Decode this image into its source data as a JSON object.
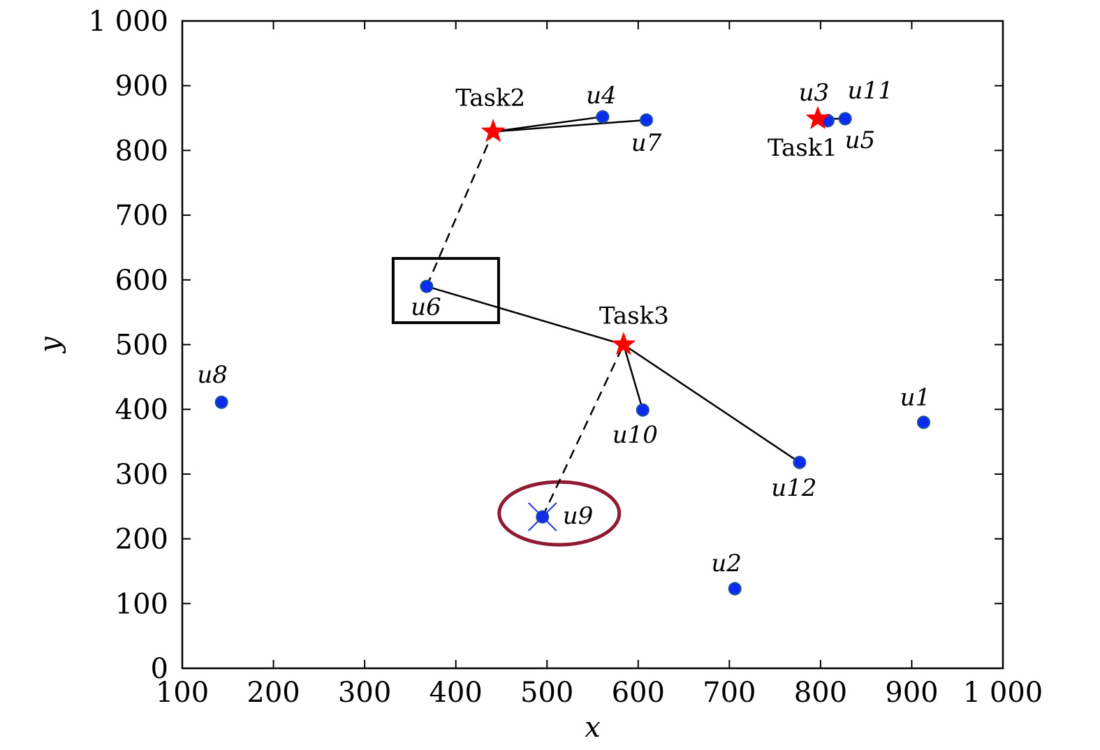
{
  "chart_data": {
    "type": "scatter",
    "xlabel": "x",
    "ylabel": "y",
    "xlim": [
      100,
      1000
    ],
    "ylim": [
      0,
      1000
    ],
    "xticks": [
      100,
      200,
      300,
      400,
      500,
      600,
      700,
      800,
      900,
      1000
    ],
    "xtick_labels": [
      "100",
      "200",
      "300",
      "400",
      "500",
      "600",
      "700",
      "800",
      "900",
      "1 000"
    ],
    "yticks": [
      0,
      100,
      200,
      300,
      400,
      500,
      600,
      700,
      800,
      900,
      1000
    ],
    "ytick_labels": [
      "0",
      "100",
      "200",
      "300",
      "400",
      "500",
      "600",
      "700",
      "800",
      "900",
      "1 000"
    ],
    "grid": false,
    "users": [
      {
        "label": "u1",
        "x": 913,
        "y": 380
      },
      {
        "label": "u2",
        "x": 706,
        "y": 123
      },
      {
        "label": "u3",
        "x": 808,
        "y": 846
      },
      {
        "label": "u4",
        "x": 561,
        "y": 852
      },
      {
        "label": "u5",
        "x": 808,
        "y": 846
      },
      {
        "label": "u6",
        "x": 368,
        "y": 590
      },
      {
        "label": "u7",
        "x": 609,
        "y": 847
      },
      {
        "label": "u8",
        "x": 143,
        "y": 411
      },
      {
        "label": "u9",
        "x": 495,
        "y": 234
      },
      {
        "label": "u10",
        "x": 605,
        "y": 399
      },
      {
        "label": "u11",
        "x": 827,
        "y": 849
      },
      {
        "label": "u12",
        "x": 777,
        "y": 318
      }
    ],
    "tasks": [
      {
        "label": "Task1",
        "x": 797,
        "y": 849
      },
      {
        "label": "Task2",
        "x": 441,
        "y": 829
      },
      {
        "label": "Task3",
        "x": 584,
        "y": 500
      }
    ],
    "solid_links": [
      {
        "from": "u4",
        "to": "Task2"
      },
      {
        "from": "u7",
        "to": "Task2"
      },
      {
        "from": "u6",
        "to": "Task3"
      },
      {
        "from": "u10",
        "to": "Task3"
      },
      {
        "from": "u12",
        "to": "Task3"
      },
      {
        "from": "u3",
        "to": "Task1"
      },
      {
        "from": "u11",
        "to": "Task1"
      }
    ],
    "dashed_links": [
      {
        "from": "u6",
        "to": "Task2"
      },
      {
        "from": "u9",
        "to": "Task3"
      }
    ],
    "highlight_box_around": "u6",
    "ellipse_around": "u9",
    "crossed_out": "u9",
    "colors": {
      "user": "#0b2bf0",
      "user_edge": "#1c4f9c",
      "task": "#ff0000",
      "link": "#000000",
      "ellipse": "#8e1b32",
      "cross": "#1a2fd6"
    }
  }
}
